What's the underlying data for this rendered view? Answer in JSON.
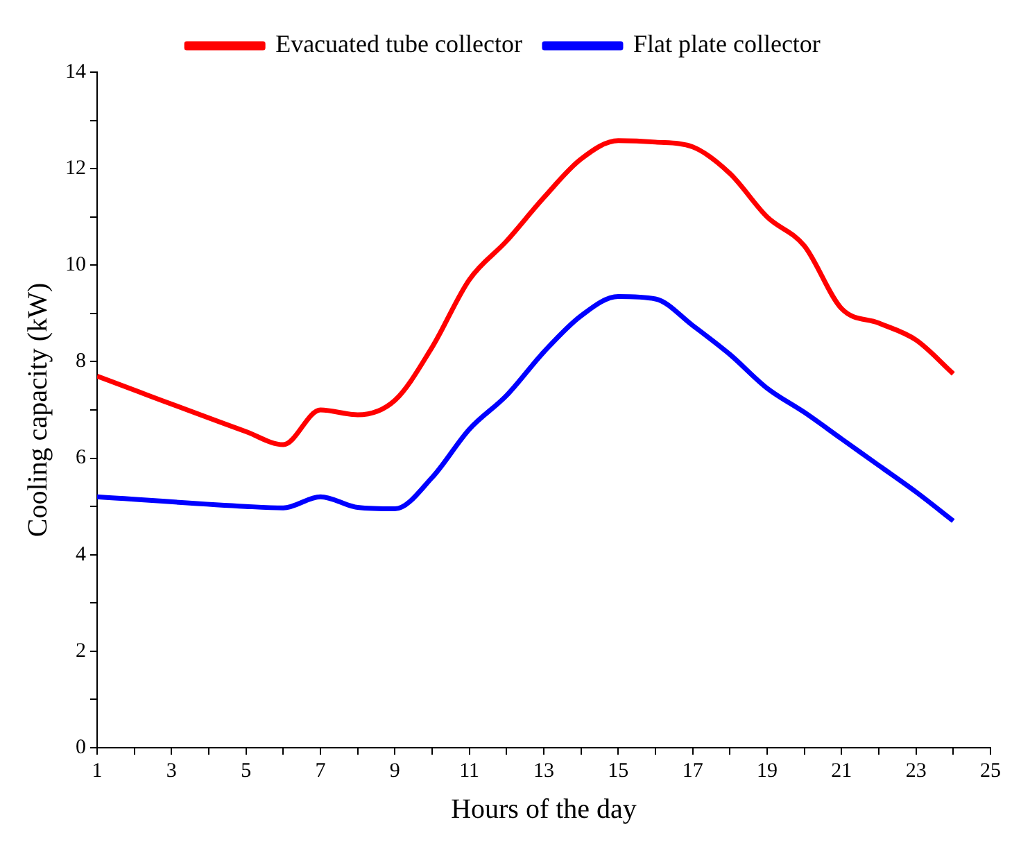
{
  "chart_data": {
    "type": "line",
    "xlabel": "Hours of the day",
    "ylabel": "Cooling capacity (kW)",
    "x": [
      1,
      5,
      6,
      7,
      8,
      9,
      10,
      11,
      12,
      13,
      14,
      15,
      16,
      17,
      18,
      19,
      20,
      21,
      22,
      23,
      24
    ],
    "series": [
      {
        "name": "Evacuated tube collector",
        "color": "#ff0000",
        "values": [
          7.7,
          6.55,
          6.28,
          7.0,
          6.9,
          7.2,
          8.3,
          9.7,
          10.5,
          11.4,
          12.2,
          12.58,
          12.55,
          12.45,
          11.9,
          11.0,
          10.4,
          9.1,
          8.8,
          8.45,
          7.75
        ]
      },
      {
        "name": "Flat plate collector",
        "color": "#0000ff",
        "values": [
          5.2,
          5.0,
          4.97,
          5.2,
          4.98,
          4.95,
          5.6,
          6.6,
          7.3,
          8.2,
          8.95,
          9.35,
          9.3,
          8.75,
          8.15,
          7.45,
          6.95,
          6.4,
          5.85,
          5.3,
          4.7
        ]
      }
    ],
    "xlim": [
      1,
      25
    ],
    "xticks": [
      1,
      {
        "value": 2,
        "label": null
      },
      3,
      {
        "value": 4,
        "label": null
      },
      5,
      {
        "value": 6,
        "label": null
      },
      7,
      {
        "value": 8,
        "label": null
      },
      9,
      {
        "value": 10,
        "label": null
      },
      11,
      {
        "value": 12,
        "label": null
      },
      13,
      {
        "value": 14,
        "label": null
      },
      15,
      {
        "value": 16,
        "label": null
      },
      17,
      {
        "value": 18,
        "label": null
      },
      19,
      {
        "value": 20,
        "label": null
      },
      21,
      {
        "value": 22,
        "label": null
      },
      23,
      {
        "value": 24,
        "label": null
      },
      25
    ],
    "ylim": [
      0,
      14
    ],
    "yticks": [
      0,
      {
        "value": 1,
        "label": null
      },
      2,
      {
        "value": 3,
        "label": null
      },
      4,
      {
        "value": 5,
        "label": null
      },
      6,
      {
        "value": 7,
        "label": null
      },
      8,
      {
        "value": 9,
        "label": null
      },
      10,
      {
        "value": 11,
        "label": null
      },
      12,
      {
        "value": 13,
        "label": null
      },
      14
    ],
    "grid": false,
    "legend": "top",
    "marker": "none",
    "line_style": "solid"
  }
}
